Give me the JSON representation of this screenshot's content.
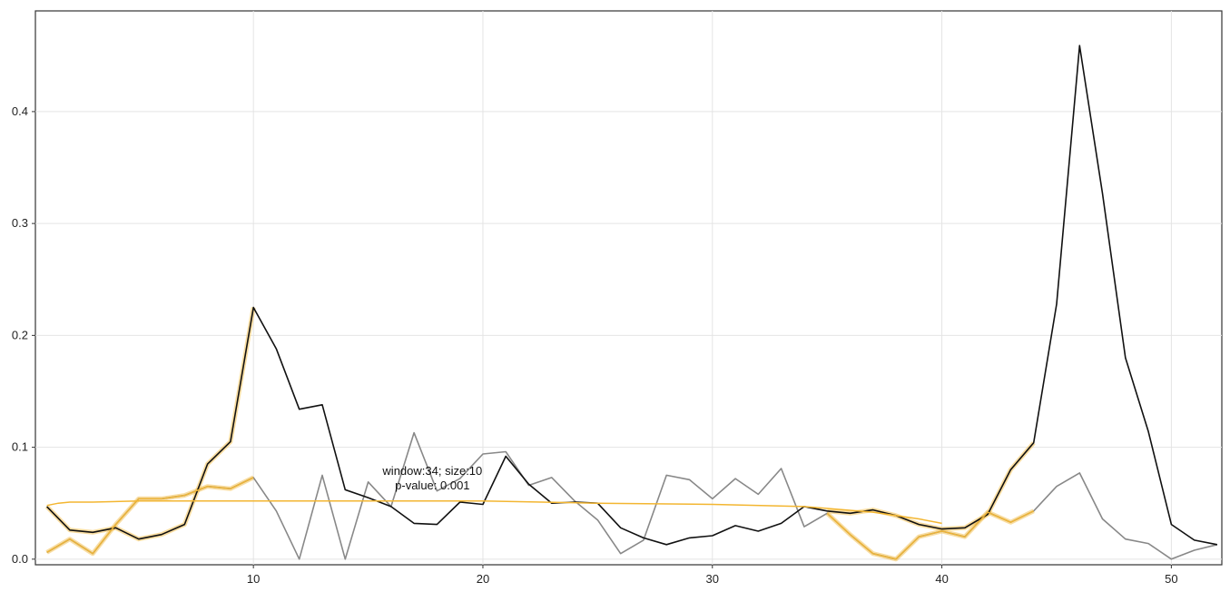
{
  "chart_data": {
    "type": "line",
    "title": "",
    "xlabel": "",
    "ylabel": "",
    "xlim": [
      0.5,
      52.2
    ],
    "ylim": [
      -0.005,
      0.49
    ],
    "xticks": [
      10,
      20,
      30,
      40,
      50
    ],
    "yticks": [
      0.0,
      0.1,
      0.2,
      0.3,
      0.4
    ],
    "x_tick_labels": [
      "10",
      "20",
      "30",
      "40",
      "50"
    ],
    "y_tick_labels": [
      "0.0",
      "0.1",
      "0.2",
      "0.3",
      "0.4"
    ],
    "grid": true,
    "x": [
      1,
      2,
      3,
      4,
      5,
      6,
      7,
      8,
      9,
      10,
      11,
      12,
      13,
      14,
      15,
      16,
      17,
      18,
      19,
      20,
      21,
      22,
      23,
      24,
      25,
      26,
      27,
      28,
      29,
      30,
      31,
      32,
      33,
      34,
      35,
      36,
      37,
      38,
      39,
      40,
      41,
      42,
      43,
      44,
      45,
      46,
      47,
      48,
      49,
      50,
      51,
      52
    ],
    "series": [
      {
        "color": "#111111",
        "values": [
          0.047,
          0.026,
          0.024,
          0.028,
          0.018,
          0.022,
          0.031,
          0.085,
          0.105,
          0.225,
          0.188,
          0.134,
          0.138,
          0.062,
          0.055,
          0.047,
          0.032,
          0.031,
          0.051,
          0.049,
          0.092,
          0.067,
          0.05,
          0.051,
          0.05,
          0.028,
          0.019,
          0.013,
          0.019,
          0.021,
          0.03,
          0.025,
          0.032,
          0.047,
          0.043,
          0.041,
          0.044,
          0.039,
          0.031,
          0.027,
          0.028,
          0.04,
          0.08,
          0.104,
          0.228,
          0.459,
          0.327,
          0.18,
          0.114,
          0.031,
          0.017,
          0.013
        ]
      },
      {
        "color": "#888888",
        "values": [
          0.006,
          0.018,
          0.005,
          0.031,
          0.054,
          0.054,
          0.057,
          0.065,
          0.063,
          0.073,
          0.043,
          0.0,
          0.075,
          0.0,
          0.069,
          0.047,
          0.113,
          0.061,
          0.072,
          0.094,
          0.096,
          0.066,
          0.073,
          0.052,
          0.035,
          0.005,
          0.017,
          0.075,
          0.071,
          0.054,
          0.072,
          0.058,
          0.081,
          0.029,
          0.041,
          0.022,
          0.005,
          0.0,
          0.02,
          0.025,
          0.02,
          0.042,
          0.033,
          0.043,
          0.065,
          0.077,
          0.036,
          0.018,
          0.014,
          0.0,
          0.008,
          0.013
        ]
      },
      {
        "color": "#f3b631",
        "x_range": [
          1,
          44
        ],
        "values_from": "upper"
      }
    ],
    "fit_curve": {
      "color": "#f3b631",
      "points": [
        [
          1,
          0.048
        ],
        [
          1.5,
          0.05
        ],
        [
          2,
          0.051
        ],
        [
          3,
          0.051
        ],
        [
          5,
          0.052
        ],
        [
          10,
          0.052
        ],
        [
          15,
          0.052
        ],
        [
          20,
          0.052
        ],
        [
          25,
          0.05
        ],
        [
          30,
          0.049
        ],
        [
          34,
          0.047
        ],
        [
          37,
          0.042
        ],
        [
          39,
          0.036
        ],
        [
          40,
          0.032
        ]
      ]
    },
    "annotation": {
      "line1": "window:34; size:10",
      "line2": "p-value: 0.001",
      "x": 17.8,
      "y": 0.069
    },
    "colors": {
      "black_series": "#111111",
      "gray_series": "#888888",
      "highlight": "#f3b631",
      "grid": "#e4e4e4",
      "axis": "#333333"
    }
  }
}
